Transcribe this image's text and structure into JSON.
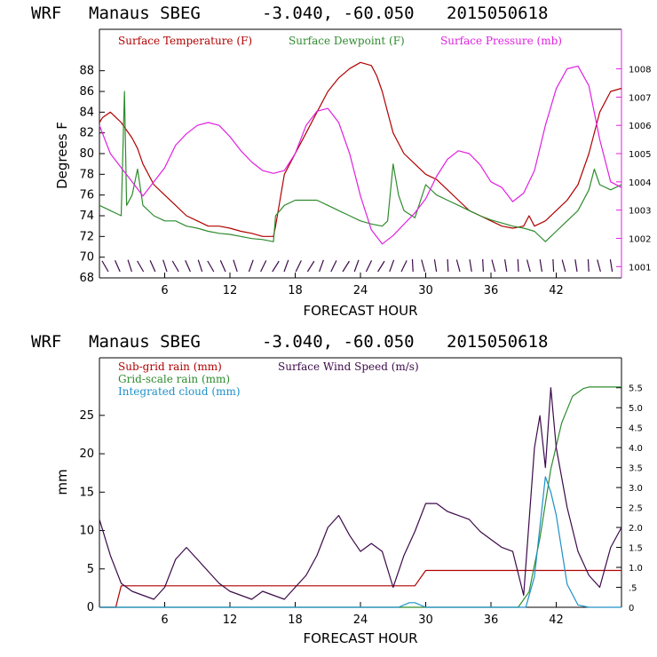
{
  "header": {
    "model": "WRF",
    "station": "Manaus SBEG",
    "coords": "-3.040, -60.050",
    "init": "2015050618"
  },
  "colors": {
    "temperature": "#b00000",
    "dewpoint": "#2e8b2e",
    "pressure": "#e020e0",
    "subgrid_rain": "#b00000",
    "grid_rain": "#2e8b2e",
    "cloud": "#1e90c8",
    "wind": "#3c0a4a",
    "pressure_axis": "#e020e0"
  },
  "chart_data": [
    {
      "type": "line",
      "xlabel": "FORECAST HOUR",
      "ylabel": "Degrees F",
      "xticks": [
        "6",
        "12",
        "18",
        "24",
        "30",
        "36",
        "42"
      ],
      "yticks": [
        "68",
        "70",
        "72",
        "74",
        "76",
        "78",
        "80",
        "82",
        "84",
        "86",
        "88"
      ],
      "y2ticks": [
        "1001",
        "1002",
        "1003",
        "1004",
        "1005",
        "1006",
        "1007",
        "1008"
      ],
      "xlim": [
        0,
        48
      ],
      "ylim": [
        68,
        92
      ],
      "y2lim": [
        1000.6,
        1009.4
      ],
      "series": [
        {
          "name": "Surface Temperature (F)",
          "axis": "left",
          "x": [
            0,
            0.3,
            1,
            2,
            3,
            3.5,
            4,
            5,
            6,
            7,
            8,
            9,
            10,
            11,
            12,
            13,
            14,
            15,
            16,
            16.2,
            17,
            18,
            19,
            20,
            21,
            22,
            23,
            24,
            25,
            25.5,
            26,
            26.5,
            27,
            28,
            29,
            30,
            31,
            32,
            33,
            34,
            35,
            36,
            37,
            38,
            39,
            39.5,
            40,
            41,
            42,
            43,
            44,
            45,
            46,
            47,
            48
          ],
          "values": [
            83,
            83.5,
            84,
            83,
            81.5,
            80.5,
            79,
            77,
            76,
            75,
            74,
            73.5,
            73,
            73,
            72.8,
            72.5,
            72.3,
            72,
            72,
            73,
            78,
            80,
            82,
            84,
            86,
            87.3,
            88.2,
            88.8,
            88.5,
            87.5,
            86,
            84,
            82,
            80,
            79,
            78,
            77.5,
            76.5,
            75.5,
            74.5,
            74,
            73.5,
            73,
            72.8,
            73,
            74,
            73,
            73.5,
            74.5,
            75.5,
            77,
            80,
            84,
            86,
            86.3
          ]
        },
        {
          "name": "Surface Dewpoint (F)",
          "axis": "left",
          "x": [
            0,
            1,
            2,
            2.3,
            2.5,
            3,
            3.5,
            4,
            5,
            6,
            7,
            8,
            9,
            10,
            11,
            12,
            13,
            14,
            15,
            16,
            16.2,
            17,
            18,
            19,
            20,
            21,
            22,
            23,
            24,
            25,
            26,
            26.5,
            27,
            27.5,
            28,
            29,
            30,
            31,
            32,
            33,
            34,
            35,
            36,
            37,
            38,
            39,
            40,
            41,
            42,
            43,
            44,
            45,
            45.5,
            46,
            47,
            48
          ],
          "values": [
            75,
            74.5,
            74,
            86,
            75,
            76,
            78.5,
            75,
            74,
            73.5,
            73.5,
            73,
            72.8,
            72.5,
            72.3,
            72.2,
            72,
            71.8,
            71.7,
            71.5,
            74,
            75,
            75.5,
            75.5,
            75.5,
            75,
            74.5,
            74,
            73.5,
            73.2,
            73,
            73.5,
            79,
            76,
            74.5,
            73.8,
            77,
            76,
            75.5,
            75,
            74.5,
            74,
            73.6,
            73.3,
            73,
            72.8,
            72.5,
            71.5,
            72.5,
            73.5,
            74.5,
            76.5,
            78.5,
            77,
            76.5,
            77
          ]
        },
        {
          "name": "Surface Pressure (mb)",
          "axis": "right",
          "x": [
            0,
            1,
            2,
            3,
            4,
            5,
            6,
            7,
            8,
            9,
            10,
            11,
            12,
            13,
            14,
            15,
            16,
            17,
            18,
            19,
            20,
            21,
            22,
            23,
            24,
            25,
            26,
            27,
            28,
            29,
            30,
            31,
            32,
            33,
            34,
            35,
            36,
            37,
            38,
            39,
            40,
            41,
            42,
            43,
            44,
            45,
            46,
            47,
            48
          ],
          "values": [
            1006,
            1005,
            1004.5,
            1004,
            1003.5,
            1004,
            1004.5,
            1005.3,
            1005.7,
            1006,
            1006.1,
            1006,
            1005.6,
            1005.1,
            1004.7,
            1004.4,
            1004.3,
            1004.4,
            1005,
            1006,
            1006.5,
            1006.6,
            1006.1,
            1005,
            1003.5,
            1002.3,
            1001.8,
            1002.1,
            1002.5,
            1002.9,
            1003.4,
            1004.2,
            1004.8,
            1005.1,
            1005,
            1004.6,
            1004,
            1003.8,
            1003.3,
            1003.6,
            1004.4,
            1006,
            1007.3,
            1008,
            1008.1,
            1007.4,
            1005.5,
            1004,
            1003.8
          ]
        }
      ],
      "legend": [
        "Surface Temperature (F)",
        "Surface Dewpoint (F)",
        "Surface Pressure (mb)"
      ]
    },
    {
      "type": "line",
      "xlabel": "FORECAST HOUR",
      "ylabel": "mm",
      "xticks": [
        "6",
        "12",
        "18",
        "24",
        "30",
        "36",
        "42"
      ],
      "yticks": [
        "0",
        "5",
        "10",
        "15",
        "20",
        "25"
      ],
      "y2ticks": [
        "0",
        ".5",
        "1.0",
        "1.5",
        "2.0",
        "2.5",
        "3.0",
        "3.5",
        "4.0",
        "4.5",
        "5.0",
        "5.5"
      ],
      "xlim": [
        0,
        48
      ],
      "ylim": [
        0,
        32.5
      ],
      "y2lim": [
        0,
        6.25
      ],
      "series": [
        {
          "name": "Sub-grid rain (mm)",
          "axis": "left",
          "x": [
            0,
            1.5,
            2,
            29,
            30,
            48
          ],
          "values": [
            0,
            0,
            2.8,
            2.8,
            4.8,
            4.8
          ]
        },
        {
          "name": "Grid-scale rain (mm)",
          "axis": "left",
          "x": [
            0,
            38.5,
            39.5,
            40.5,
            41.5,
            42.5,
            43.5,
            44.5,
            45,
            48
          ],
          "values": [
            0,
            0,
            2,
            9,
            18,
            24,
            27.5,
            28.5,
            28.7,
            28.7
          ]
        },
        {
          "name": "Integrated cloud (mm)",
          "axis": "left",
          "x": [
            0,
            27.5,
            28.5,
            29,
            30,
            39.2,
            40,
            41,
            41.5,
            42,
            43,
            44,
            45,
            48
          ],
          "values": [
            0,
            0,
            0.6,
            0.6,
            0,
            0,
            4,
            17,
            15,
            12,
            3,
            0.3,
            0,
            0
          ]
        },
        {
          "name": "Surface Wind Speed (m/s)",
          "axis": "right",
          "x": [
            0,
            1,
            2,
            3,
            4,
            5,
            6,
            7,
            8,
            9,
            10,
            11,
            12,
            13,
            14,
            15,
            16,
            17,
            18,
            19,
            20,
            21,
            22,
            23,
            24,
            25,
            26,
            27,
            28,
            29,
            30,
            31,
            32,
            33,
            34,
            35,
            36,
            37,
            38,
            39,
            40,
            40.5,
            41,
            41.5,
            42,
            43,
            44,
            45,
            46,
            47,
            48
          ],
          "values": [
            2.2,
            1.3,
            0.6,
            0.4,
            0.3,
            0.2,
            0.5,
            1.2,
            1.5,
            1.2,
            0.9,
            0.6,
            0.4,
            0.3,
            0.2,
            0.4,
            0.3,
            0.2,
            0.5,
            0.8,
            1.3,
            2.0,
            2.3,
            1.8,
            1.4,
            1.6,
            1.4,
            0.5,
            1.3,
            1.9,
            2.6,
            2.6,
            2.4,
            2.3,
            2.2,
            1.9,
            1.7,
            1.5,
            1.4,
            0.3,
            4.0,
            4.8,
            3.5,
            5.5,
            4.0,
            2.5,
            1.4,
            0.8,
            0.5,
            1.5,
            2.0
          ]
        }
      ],
      "legend": [
        "Sub-grid rain (mm)",
        "Surface Wind Speed (m/s)",
        "Grid-scale rain (mm)",
        "Integrated cloud (mm)"
      ]
    }
  ]
}
